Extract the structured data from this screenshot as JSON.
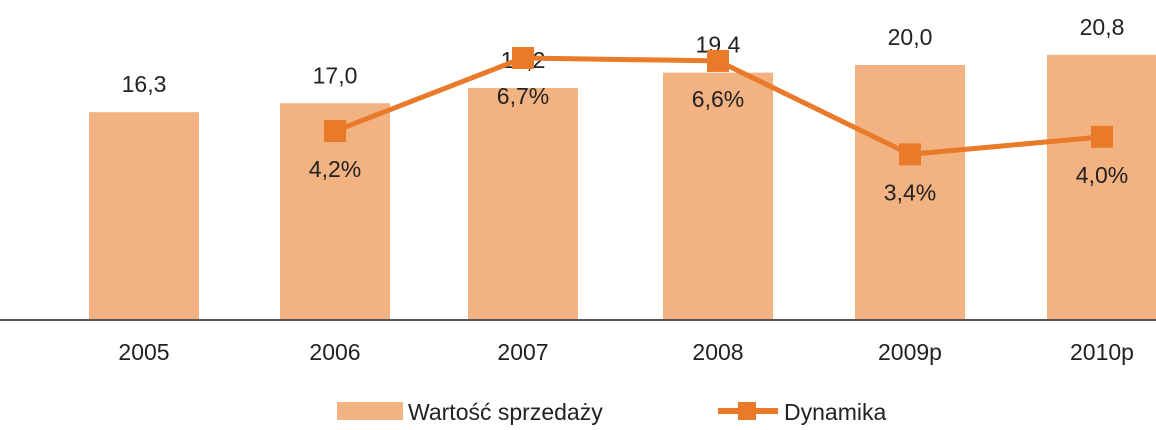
{
  "chart_data": {
    "type": "bar",
    "categories": [
      "2005",
      "2006",
      "2007",
      "2008",
      "2009p",
      "2010p"
    ],
    "bar_series": {
      "name": "Wartość sprzedaży",
      "values": [
        16.3,
        17.0,
        18.2,
        19.4,
        20.0,
        20.8
      ],
      "labels": [
        "16,3",
        "17,0",
        "18,2",
        "19,4",
        "20,0",
        "20,8"
      ],
      "color": "#f2b282"
    },
    "line_series": {
      "name": "Dynamika",
      "values": [
        null,
        4.2,
        6.7,
        6.6,
        3.4,
        4.0
      ],
      "labels": [
        "",
        "4,2%",
        "6,7%",
        "6,6%",
        "3,4%",
        "4,0%"
      ],
      "color": "#e87a2a"
    },
    "legend": {
      "position": "bottom-center"
    },
    "axis_color": "#555555",
    "grid": false
  }
}
